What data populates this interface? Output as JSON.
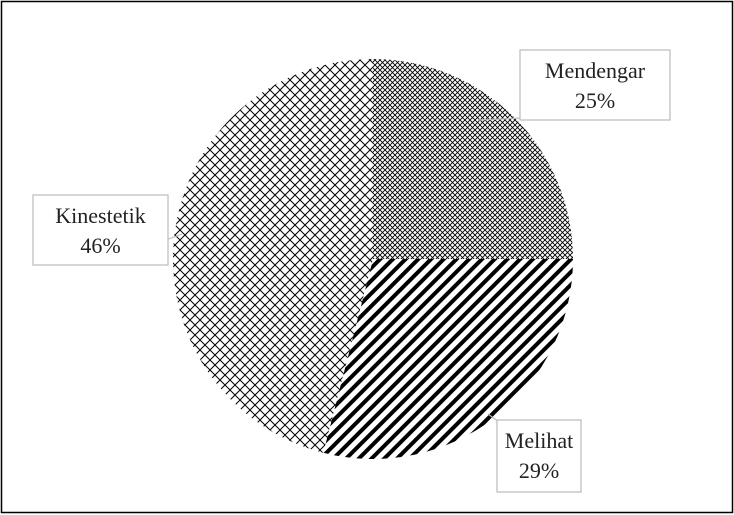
{
  "chart_data": {
    "type": "pie",
    "categories": [
      "Mendengar",
      "Melihat",
      "Kinestetik"
    ],
    "values": [
      25,
      29,
      46
    ],
    "value_labels": [
      "25%",
      "29%",
      "46%"
    ]
  }
}
